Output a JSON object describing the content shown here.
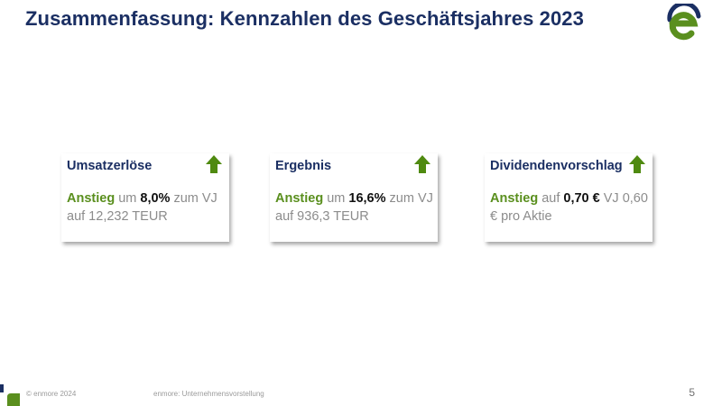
{
  "title": "Zusammenfassung: Kennzahlen des Geschäftsjahres 2023",
  "logo": {
    "icon": "enmore-e-logo",
    "colors": {
      "navy": "#1b2f63",
      "green": "#5a8f1e"
    }
  },
  "cards": [
    {
      "title": "Umsatzerlöse",
      "icon": "arrow-up-icon",
      "highlight": "Anstieg",
      "connector": " um ",
      "value": "8,0%",
      "rest": " zum VJ auf 12,232 TEUR"
    },
    {
      "title": "Ergebnis",
      "icon": "arrow-up-icon",
      "highlight": "Anstieg",
      "connector": " um ",
      "value": "16,6%",
      "rest": " zum VJ  auf 936,3 TEUR"
    },
    {
      "title": "Dividendenvorschlag",
      "icon": "arrow-up-icon",
      "highlight": "Anstieg",
      "connector": " auf ",
      "value": "0,70 €",
      "rest": " VJ 0,60 € pro Aktie"
    }
  ],
  "footer": {
    "copyright": "© enmore 2024",
    "center": "enmore: Unternehmensvorstellung",
    "page": "5"
  },
  "colors": {
    "title": "#1b2f63",
    "highlight_green": "#5a8f1e",
    "arrow_green": "#4f8a10",
    "body_gray": "#8c8c8c"
  }
}
